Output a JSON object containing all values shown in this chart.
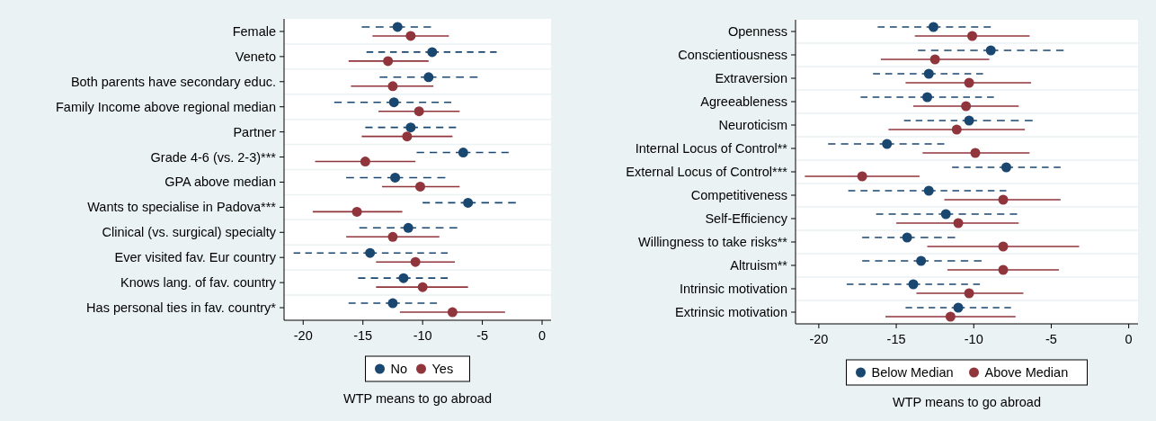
{
  "chart_data": [
    {
      "type": "scatter",
      "orientation": "horizontal",
      "xlabel": "WTP means to go abroad",
      "categories": [
        "Female",
        "Veneto",
        "Both parents have secondary educ.",
        "Family Income above regional median",
        "Partner",
        "Grade 4-6 (vs. 2-3)***",
        "GPA above median",
        "Wants to specialise in Padova***",
        "Clinical (vs. surgical) specialty",
        "Ever visited fav. Eur country",
        "Knows lang. of fav. country",
        "Has personal ties in fav. country*"
      ],
      "series": [
        {
          "name": "No",
          "color": "#1a476f",
          "line_style": "dashed",
          "values": [
            -12.1,
            -9.2,
            -9.5,
            -12.4,
            -11.0,
            -6.6,
            -12.3,
            -6.2,
            -11.2,
            -14.4,
            -11.6,
            -12.5
          ],
          "errors": [
            [
              -15.1,
              -9.3
            ],
            [
              -14.7,
              -3.8
            ],
            [
              -13.6,
              -5.4
            ],
            [
              -17.4,
              -7.6
            ],
            [
              -14.8,
              -7.2
            ],
            [
              -10.5,
              -2.8
            ],
            [
              -16.4,
              -8.1
            ],
            [
              -10.0,
              -2.2
            ],
            [
              -15.3,
              -7.1
            ],
            [
              -20.8,
              -7.9
            ],
            [
              -15.4,
              -7.9
            ],
            [
              -16.2,
              -8.8
            ]
          ]
        },
        {
          "name": "Yes",
          "color": "#90353b",
          "line_style": "solid",
          "values": [
            -11.0,
            -12.9,
            -12.5,
            -10.3,
            -11.3,
            -14.8,
            -10.2,
            -15.5,
            -12.5,
            -10.6,
            -10.0,
            -7.5
          ],
          "errors": [
            [
              -14.2,
              -7.8
            ],
            [
              -16.2,
              -9.5
            ],
            [
              -16.0,
              -9.1
            ],
            [
              -13.7,
              -6.9
            ],
            [
              -15.1,
              -7.5
            ],
            [
              -19.0,
              -10.6
            ],
            [
              -13.4,
              -6.9
            ],
            [
              -19.2,
              -11.7
            ],
            [
              -16.4,
              -8.6
            ],
            [
              -13.9,
              -7.3
            ],
            [
              -13.9,
              -6.2
            ],
            [
              -11.9,
              -3.1
            ]
          ]
        }
      ],
      "xlim": [
        -21.6,
        0.75
      ],
      "xticks": [
        -20,
        -15,
        -10,
        -5,
        0
      ],
      "grid": "y",
      "legend": "bottom",
      "marker": "circle"
    },
    {
      "type": "scatter",
      "orientation": "horizontal",
      "xlabel": "WTP means to go abroad",
      "categories": [
        "Openness",
        "Conscientiousness",
        "Extraversion",
        "Agreeableness",
        "Neuroticism",
        "Internal Locus of Control**",
        "External Locus of Control***",
        "Competitiveness",
        "Self-Efficiency",
        "Willingness to take risks**",
        "Altruism**",
        "Intrinsic motivation",
        "Extrinsic motivation"
      ],
      "series": [
        {
          "name": "Below Median",
          "color": "#1a476f",
          "line_style": "dashed",
          "values": [
            -12.6,
            -8.9,
            -12.9,
            -13.0,
            -10.3,
            -15.6,
            -7.9,
            -12.9,
            -11.8,
            -14.3,
            -13.4,
            -13.9,
            -11.0
          ],
          "errors": [
            [
              -16.2,
              -8.9
            ],
            [
              -13.6,
              -4.2
            ],
            [
              -16.5,
              -9.4
            ],
            [
              -17.3,
              -8.7
            ],
            [
              -14.5,
              -6.2
            ],
            [
              -19.4,
              -11.9
            ],
            [
              -11.4,
              -4.4
            ],
            [
              -18.1,
              -7.9
            ],
            [
              -16.3,
              -7.2
            ],
            [
              -17.2,
              -11.2
            ],
            [
              -17.2,
              -9.5
            ],
            [
              -18.2,
              -9.6
            ],
            [
              -14.4,
              -7.6
            ]
          ]
        },
        {
          "name": "Above Median",
          "color": "#90353b",
          "line_style": "solid",
          "values": [
            -10.1,
            -12.5,
            -10.3,
            -10.5,
            -11.1,
            -9.9,
            -17.2,
            -8.1,
            -11.0,
            -8.1,
            -8.1,
            -10.3,
            -11.5
          ],
          "errors": [
            [
              -13.8,
              -6.4
            ],
            [
              -16.0,
              -9.0
            ],
            [
              -14.4,
              -6.3
            ],
            [
              -13.9,
              -7.1
            ],
            [
              -15.5,
              -6.7
            ],
            [
              -13.3,
              -6.4
            ],
            [
              -20.9,
              -13.5
            ],
            [
              -11.9,
              -4.4
            ],
            [
              -15.0,
              -7.1
            ],
            [
              -13.0,
              -3.2
            ],
            [
              -11.7,
              -4.5
            ],
            [
              -13.7,
              -6.8
            ],
            [
              -15.7,
              -7.3
            ]
          ]
        }
      ],
      "xlim": [
        -21.5,
        0.6
      ],
      "xticks": [
        -20,
        -15,
        -10,
        -5,
        0
      ],
      "grid": "y",
      "legend": "bottom",
      "marker": "circle"
    }
  ]
}
